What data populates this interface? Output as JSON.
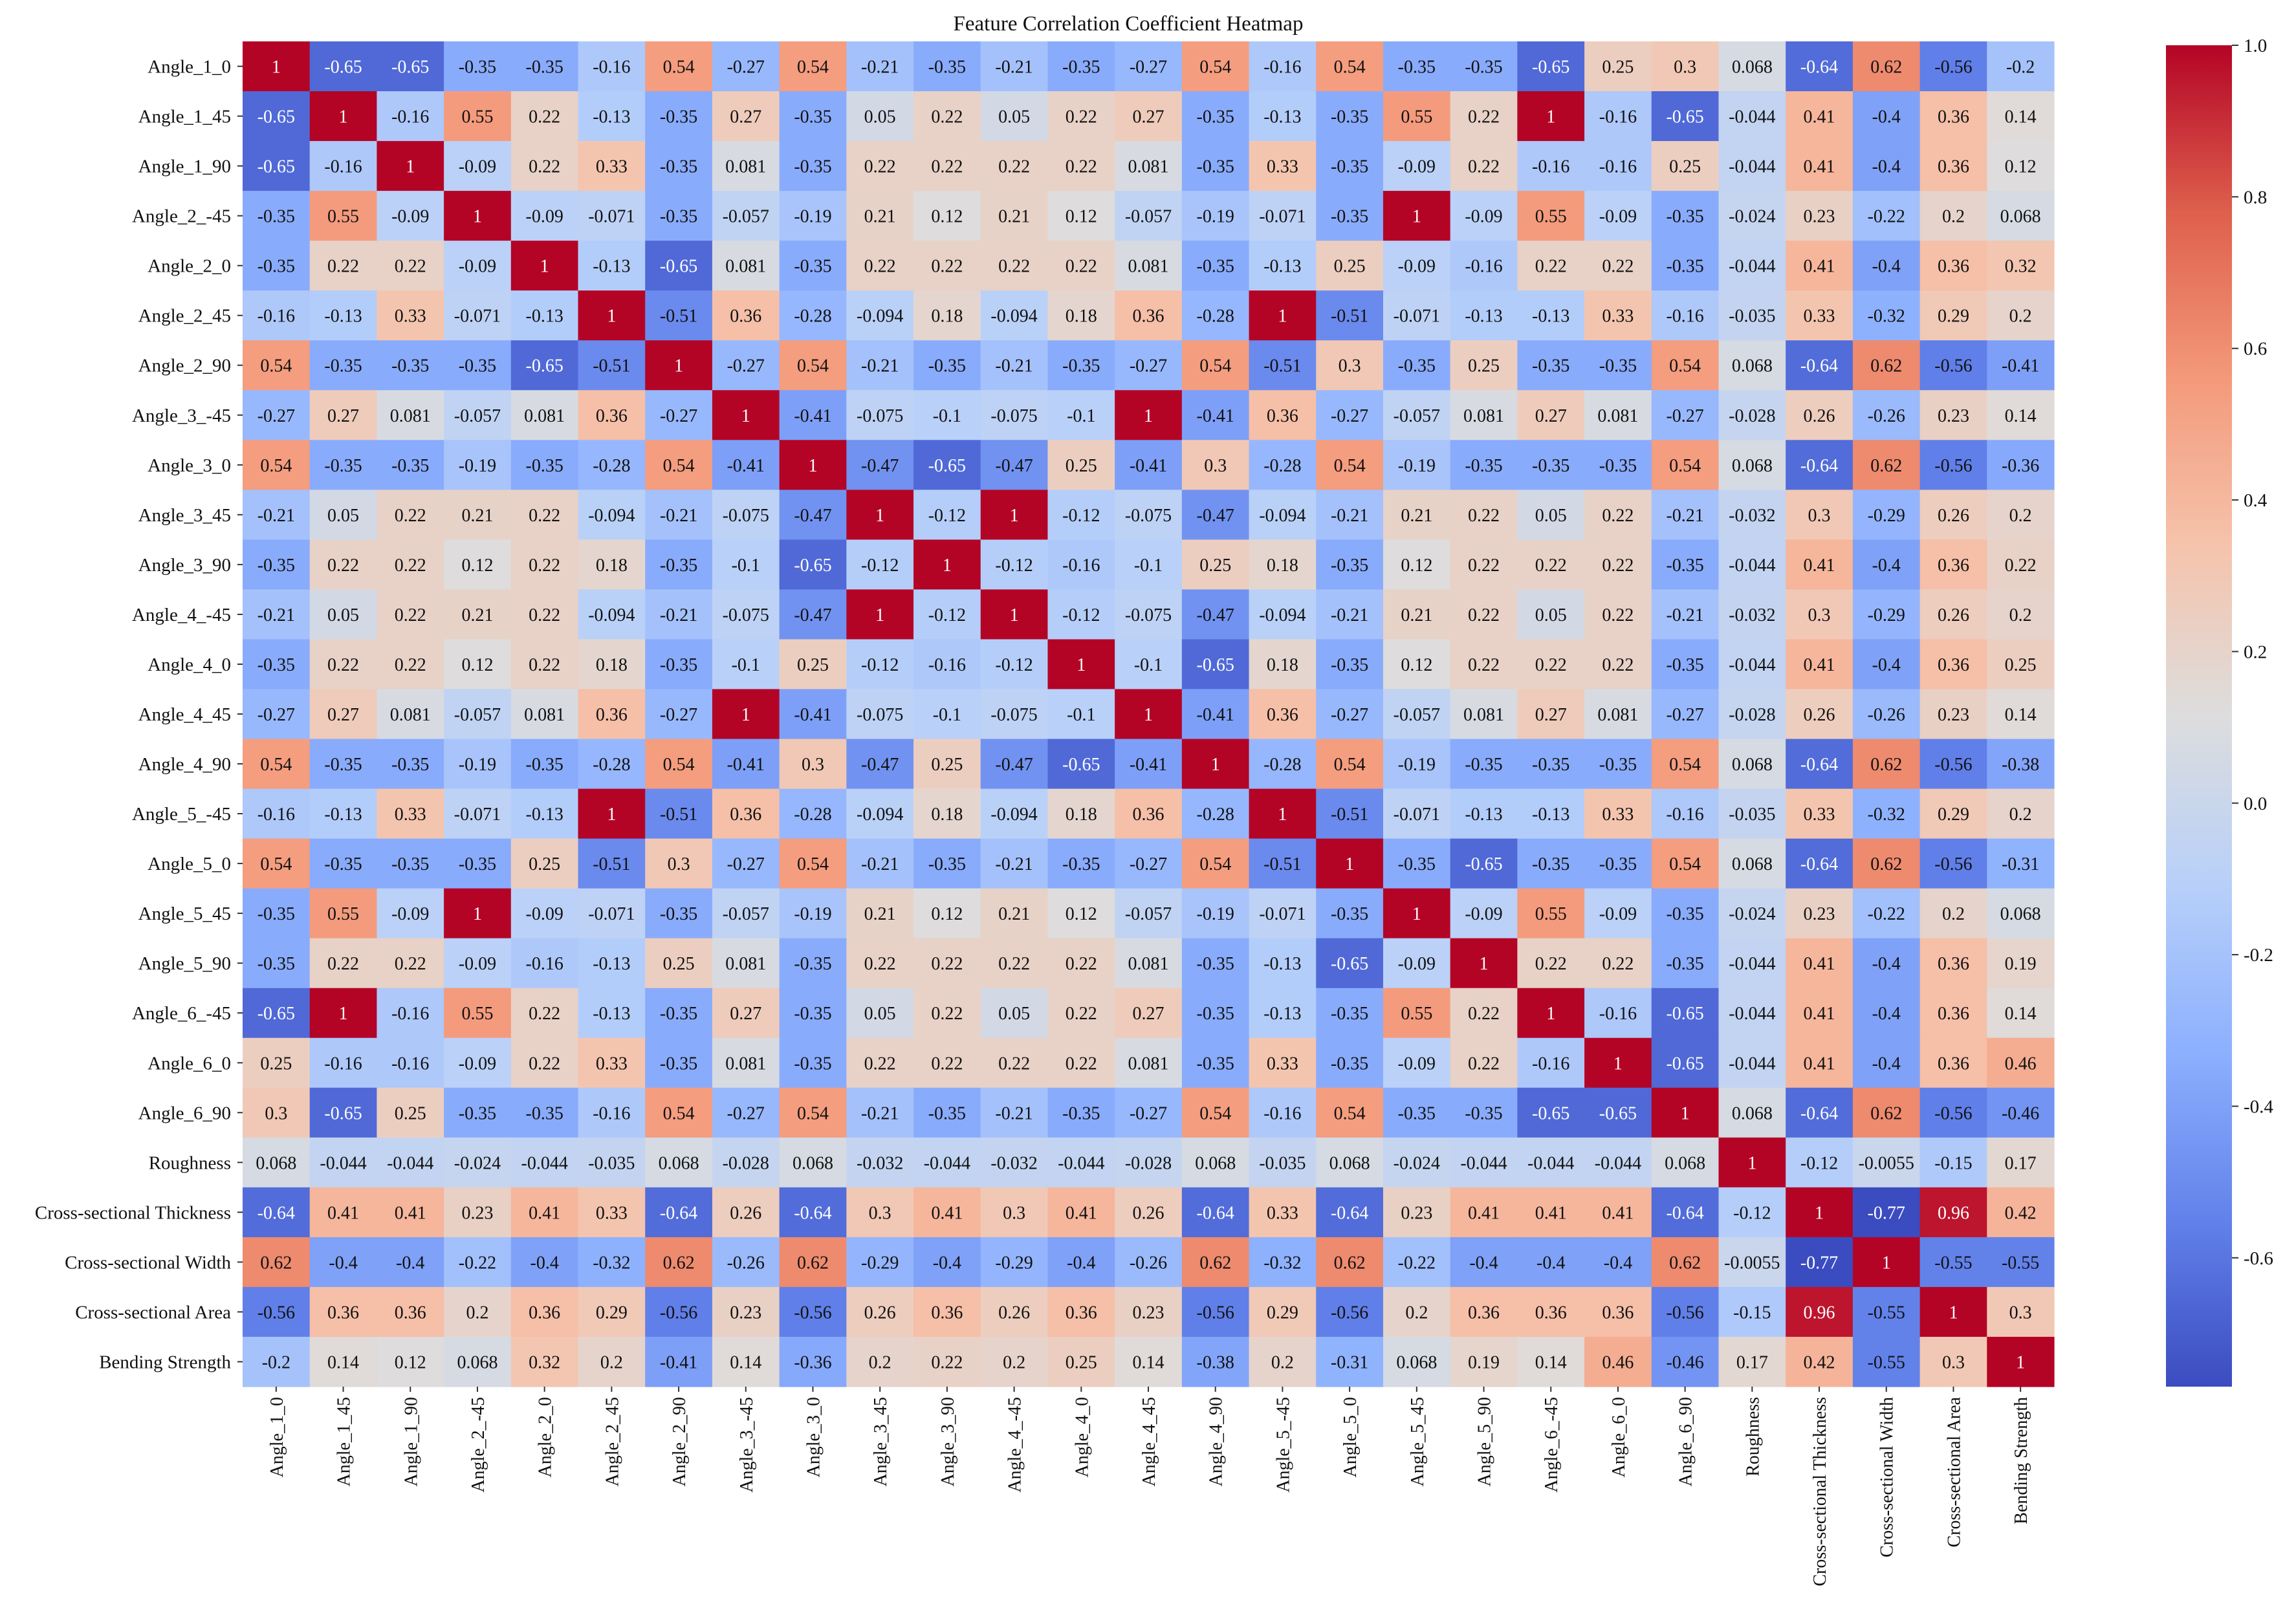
{
  "chart_data": {
    "type": "heatmap",
    "title": "Feature Correlation Coefficient Heatmap",
    "labels": [
      "Angle_1_0",
      "Angle_1_45",
      "Angle_1_90",
      "Angle_2_-45",
      "Angle_2_0",
      "Angle_2_45",
      "Angle_2_90",
      "Angle_3_-45",
      "Angle_3_0",
      "Angle_3_45",
      "Angle_3_90",
      "Angle_4_-45",
      "Angle_4_0",
      "Angle_4_45",
      "Angle_4_90",
      "Angle_5_-45",
      "Angle_5_0",
      "Angle_5_45",
      "Angle_5_90",
      "Angle_6_-45",
      "Angle_6_0",
      "Angle_6_90",
      "Roughness",
      "Cross-sectional Thickness",
      "Cross-sectional Width",
      "Cross-sectional Area",
      "Bending Strength"
    ],
    "matrix": [
      [
        1,
        -0.65,
        -0.65,
        -0.35,
        -0.35,
        -0.16,
        0.54,
        -0.27,
        0.54,
        -0.21,
        -0.35,
        -0.21,
        -0.35,
        -0.27,
        0.54,
        -0.16,
        0.54,
        -0.35,
        -0.35,
        -0.65,
        0.25,
        0.3,
        0.068,
        -0.64,
        0.62,
        -0.56,
        -0.2
      ],
      [
        -0.65,
        1,
        -0.16,
        0.55,
        0.22,
        -0.13,
        -0.35,
        0.27,
        -0.35,
        0.05,
        0.22,
        0.05,
        0.22,
        0.27,
        -0.35,
        -0.13,
        -0.35,
        0.55,
        0.22,
        1,
        -0.16,
        -0.65,
        -0.044,
        0.41,
        -0.4,
        0.36,
        0.14
      ],
      [
        -0.65,
        -0.16,
        1,
        -0.09,
        0.22,
        0.33,
        -0.35,
        0.081,
        -0.35,
        0.22,
        0.22,
        0.22,
        0.22,
        0.081,
        -0.35,
        0.33,
        -0.35,
        -0.09,
        0.22,
        -0.16,
        -0.16,
        0.25,
        -0.044,
        0.41,
        -0.4,
        0.36,
        0.12
      ],
      [
        -0.35,
        0.55,
        -0.09,
        1,
        -0.09,
        -0.071,
        -0.35,
        -0.057,
        -0.19,
        0.21,
        0.12,
        0.21,
        0.12,
        -0.057,
        -0.19,
        -0.071,
        -0.35,
        1,
        -0.09,
        0.55,
        -0.09,
        -0.35,
        -0.024,
        0.23,
        -0.22,
        0.2,
        0.068
      ],
      [
        -0.35,
        0.22,
        0.22,
        -0.09,
        1,
        -0.13,
        -0.65,
        0.081,
        -0.35,
        0.22,
        0.22,
        0.22,
        0.22,
        0.081,
        -0.35,
        -0.13,
        0.25,
        -0.09,
        -0.16,
        0.22,
        0.22,
        -0.35,
        -0.044,
        0.41,
        -0.4,
        0.36,
        0.32
      ],
      [
        -0.16,
        -0.13,
        0.33,
        -0.071,
        -0.13,
        1,
        -0.51,
        0.36,
        -0.28,
        -0.094,
        0.18,
        -0.094,
        0.18,
        0.36,
        -0.28,
        1,
        -0.51,
        -0.071,
        -0.13,
        -0.13,
        0.33,
        -0.16,
        -0.035,
        0.33,
        -0.32,
        0.29,
        0.2
      ],
      [
        0.54,
        -0.35,
        -0.35,
        -0.35,
        -0.65,
        -0.51,
        1,
        -0.27,
        0.54,
        -0.21,
        -0.35,
        -0.21,
        -0.35,
        -0.27,
        0.54,
        -0.51,
        0.3,
        -0.35,
        0.25,
        -0.35,
        -0.35,
        0.54,
        0.068,
        -0.64,
        0.62,
        -0.56,
        -0.41
      ],
      [
        -0.27,
        0.27,
        0.081,
        -0.057,
        0.081,
        0.36,
        -0.27,
        1,
        -0.41,
        -0.075,
        -0.1,
        -0.075,
        -0.1,
        1,
        -0.41,
        0.36,
        -0.27,
        -0.057,
        0.081,
        0.27,
        0.081,
        -0.27,
        -0.028,
        0.26,
        -0.26,
        0.23,
        0.14
      ],
      [
        0.54,
        -0.35,
        -0.35,
        -0.19,
        -0.35,
        -0.28,
        0.54,
        -0.41,
        1,
        -0.47,
        -0.65,
        -0.47,
        0.25,
        -0.41,
        0.3,
        -0.28,
        0.54,
        -0.19,
        -0.35,
        -0.35,
        -0.35,
        0.54,
        0.068,
        -0.64,
        0.62,
        -0.56,
        -0.36
      ],
      [
        -0.21,
        0.05,
        0.22,
        0.21,
        0.22,
        -0.094,
        -0.21,
        -0.075,
        -0.47,
        1,
        -0.12,
        1,
        -0.12,
        -0.075,
        -0.47,
        -0.094,
        -0.21,
        0.21,
        0.22,
        0.05,
        0.22,
        -0.21,
        -0.032,
        0.3,
        -0.29,
        0.26,
        0.2
      ],
      [
        -0.35,
        0.22,
        0.22,
        0.12,
        0.22,
        0.18,
        -0.35,
        -0.1,
        -0.65,
        -0.12,
        1,
        -0.12,
        -0.16,
        -0.1,
        0.25,
        0.18,
        -0.35,
        0.12,
        0.22,
        0.22,
        0.22,
        -0.35,
        -0.044,
        0.41,
        -0.4,
        0.36,
        0.22
      ],
      [
        -0.21,
        0.05,
        0.22,
        0.21,
        0.22,
        -0.094,
        -0.21,
        -0.075,
        -0.47,
        1,
        -0.12,
        1,
        -0.12,
        -0.075,
        -0.47,
        -0.094,
        -0.21,
        0.21,
        0.22,
        0.05,
        0.22,
        -0.21,
        -0.032,
        0.3,
        -0.29,
        0.26,
        0.2
      ],
      [
        -0.35,
        0.22,
        0.22,
        0.12,
        0.22,
        0.18,
        -0.35,
        -0.1,
        0.25,
        -0.12,
        -0.16,
        -0.12,
        1,
        -0.1,
        -0.65,
        0.18,
        -0.35,
        0.12,
        0.22,
        0.22,
        0.22,
        -0.35,
        -0.044,
        0.41,
        -0.4,
        0.36,
        0.25
      ],
      [
        -0.27,
        0.27,
        0.081,
        -0.057,
        0.081,
        0.36,
        -0.27,
        1,
        -0.41,
        -0.075,
        -0.1,
        -0.075,
        -0.1,
        1,
        -0.41,
        0.36,
        -0.27,
        -0.057,
        0.081,
        0.27,
        0.081,
        -0.27,
        -0.028,
        0.26,
        -0.26,
        0.23,
        0.14
      ],
      [
        0.54,
        -0.35,
        -0.35,
        -0.19,
        -0.35,
        -0.28,
        0.54,
        -0.41,
        0.3,
        -0.47,
        0.25,
        -0.47,
        -0.65,
        -0.41,
        1,
        -0.28,
        0.54,
        -0.19,
        -0.35,
        -0.35,
        -0.35,
        0.54,
        0.068,
        -0.64,
        0.62,
        -0.56,
        -0.38
      ],
      [
        -0.16,
        -0.13,
        0.33,
        -0.071,
        -0.13,
        1,
        -0.51,
        0.36,
        -0.28,
        -0.094,
        0.18,
        -0.094,
        0.18,
        0.36,
        -0.28,
        1,
        -0.51,
        -0.071,
        -0.13,
        -0.13,
        0.33,
        -0.16,
        -0.035,
        0.33,
        -0.32,
        0.29,
        0.2
      ],
      [
        0.54,
        -0.35,
        -0.35,
        -0.35,
        0.25,
        -0.51,
        0.3,
        -0.27,
        0.54,
        -0.21,
        -0.35,
        -0.21,
        -0.35,
        -0.27,
        0.54,
        -0.51,
        1,
        -0.35,
        -0.65,
        -0.35,
        -0.35,
        0.54,
        0.068,
        -0.64,
        0.62,
        -0.56,
        -0.31
      ],
      [
        -0.35,
        0.55,
        -0.09,
        1,
        -0.09,
        -0.071,
        -0.35,
        -0.057,
        -0.19,
        0.21,
        0.12,
        0.21,
        0.12,
        -0.057,
        -0.19,
        -0.071,
        -0.35,
        1,
        -0.09,
        0.55,
        -0.09,
        -0.35,
        -0.024,
        0.23,
        -0.22,
        0.2,
        0.068
      ],
      [
        -0.35,
        0.22,
        0.22,
        -0.09,
        -0.16,
        -0.13,
        0.25,
        0.081,
        -0.35,
        0.22,
        0.22,
        0.22,
        0.22,
        0.081,
        -0.35,
        -0.13,
        -0.65,
        -0.09,
        1,
        0.22,
        0.22,
        -0.35,
        -0.044,
        0.41,
        -0.4,
        0.36,
        0.19
      ],
      [
        -0.65,
        1,
        -0.16,
        0.55,
        0.22,
        -0.13,
        -0.35,
        0.27,
        -0.35,
        0.05,
        0.22,
        0.05,
        0.22,
        0.27,
        -0.35,
        -0.13,
        -0.35,
        0.55,
        0.22,
        1,
        -0.16,
        -0.65,
        -0.044,
        0.41,
        -0.4,
        0.36,
        0.14
      ],
      [
        0.25,
        -0.16,
        -0.16,
        -0.09,
        0.22,
        0.33,
        -0.35,
        0.081,
        -0.35,
        0.22,
        0.22,
        0.22,
        0.22,
        0.081,
        -0.35,
        0.33,
        -0.35,
        -0.09,
        0.22,
        -0.16,
        1,
        -0.65,
        -0.044,
        0.41,
        -0.4,
        0.36,
        0.46
      ],
      [
        0.3,
        -0.65,
        0.25,
        -0.35,
        -0.35,
        -0.16,
        0.54,
        -0.27,
        0.54,
        -0.21,
        -0.35,
        -0.21,
        -0.35,
        -0.27,
        0.54,
        -0.16,
        0.54,
        -0.35,
        -0.35,
        -0.65,
        -0.65,
        1,
        0.068,
        -0.64,
        0.62,
        -0.56,
        -0.46
      ],
      [
        0.068,
        -0.044,
        -0.044,
        -0.024,
        -0.044,
        -0.035,
        0.068,
        -0.028,
        0.068,
        -0.032,
        -0.044,
        -0.032,
        -0.044,
        -0.028,
        0.068,
        -0.035,
        0.068,
        -0.024,
        -0.044,
        -0.044,
        -0.044,
        0.068,
        1,
        -0.12,
        -0.0055,
        -0.15,
        0.17
      ],
      [
        -0.64,
        0.41,
        0.41,
        0.23,
        0.41,
        0.33,
        -0.64,
        0.26,
        -0.64,
        0.3,
        0.41,
        0.3,
        0.41,
        0.26,
        -0.64,
        0.33,
        -0.64,
        0.23,
        0.41,
        0.41,
        0.41,
        -0.64,
        -0.12,
        1,
        -0.77,
        0.96,
        0.42
      ],
      [
        0.62,
        -0.4,
        -0.4,
        -0.22,
        -0.4,
        -0.32,
        0.62,
        -0.26,
        0.62,
        -0.29,
        -0.4,
        -0.29,
        -0.4,
        -0.26,
        0.62,
        -0.32,
        0.62,
        -0.22,
        -0.4,
        -0.4,
        -0.4,
        0.62,
        -0.0055,
        -0.77,
        1,
        -0.55,
        -0.55
      ],
      [
        -0.56,
        0.36,
        0.36,
        0.2,
        0.36,
        0.29,
        -0.56,
        0.23,
        -0.56,
        0.26,
        0.36,
        0.26,
        0.36,
        0.23,
        -0.56,
        0.29,
        -0.56,
        0.2,
        0.36,
        0.36,
        0.36,
        -0.56,
        -0.15,
        0.96,
        -0.55,
        1,
        0.3
      ],
      [
        -0.2,
        0.14,
        0.12,
        0.068,
        0.32,
        0.2,
        -0.41,
        0.14,
        -0.36,
        0.2,
        0.22,
        0.2,
        0.25,
        0.14,
        -0.38,
        0.2,
        -0.31,
        0.068,
        0.19,
        0.14,
        0.46,
        -0.46,
        0.17,
        0.42,
        -0.55,
        0.3,
        1
      ]
    ],
    "colormap": "coolwarm",
    "vmin": -0.77,
    "vmax": 1.0,
    "colorbar_ticks": [
      "1.0",
      "0.8",
      "0.6",
      "0.4",
      "0.2",
      "0.0",
      "-0.2",
      "-0.4",
      "-0.6"
    ],
    "colorbar_tick_values": [
      1.0,
      0.8,
      0.6,
      0.4,
      0.2,
      0.0,
      -0.2,
      -0.4,
      -0.6
    ],
    "xlabel": "",
    "ylabel": ""
  }
}
